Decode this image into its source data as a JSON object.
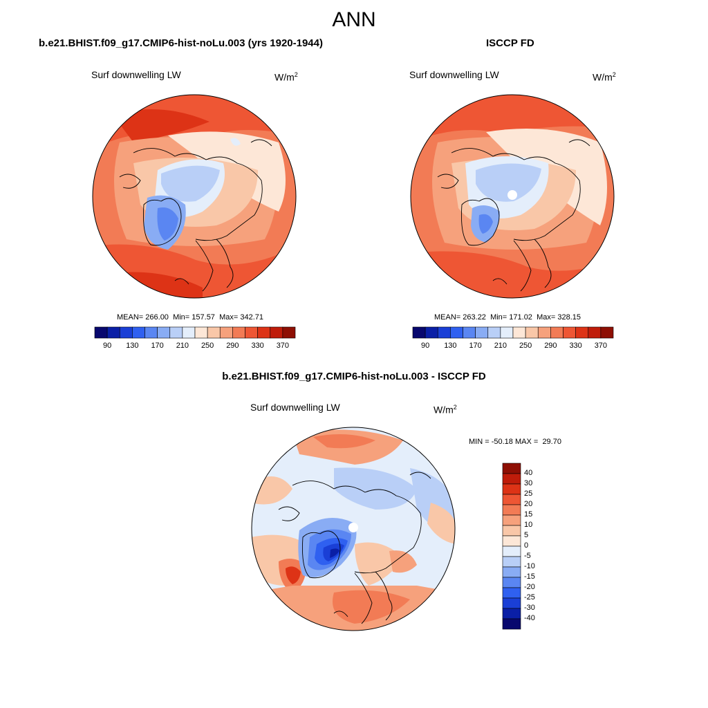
{
  "figure": {
    "season": "ANN"
  },
  "panels": [
    {
      "id": "model",
      "case_title": "b.e21.BHIST.f09_g17.CMIP6-hist-noLu.003 (yrs 1920-1944)",
      "variable": "Surf downwelling LW",
      "units_base": "W/m",
      "units_exp": "2",
      "stats": {
        "mean_label": "MEAN=",
        "mean": "266.00",
        "min_label": "Min=",
        "min": "157.57",
        "max_label": "Max=",
        "max": "342.71"
      }
    },
    {
      "id": "obs",
      "case_title": "ISCCP FD",
      "variable": "Surf downwelling LW",
      "units_base": "W/m",
      "units_exp": "2",
      "stats": {
        "mean_label": "MEAN=",
        "mean": "263.22",
        "min_label": "Min=",
        "min": "171.02",
        "max_label": "Max=",
        "max": "328.15"
      }
    },
    {
      "id": "diff",
      "case_title": "b.e21.BHIST.f09_g17.CMIP6-hist-noLu.003 - ISCCP FD",
      "variable": "Surf downwelling LW",
      "units_base": "W/m",
      "units_exp": "2",
      "stats": {
        "min_label": "MIN =",
        "min": "-50.18",
        "max_label": "MAX =",
        "max": "29.70"
      }
    }
  ],
  "colorbars": {
    "field": {
      "orientation": "horizontal",
      "colors": [
        "#08086e",
        "#0a1fa6",
        "#1a3fd6",
        "#2f60f0",
        "#5a86f2",
        "#89acf4",
        "#b9cff7",
        "#e4eefb",
        "#fde7d7",
        "#f9c7a8",
        "#f6a17c",
        "#f27b55",
        "#ee5634",
        "#dd3316",
        "#bf1c0a",
        "#8e0f04"
      ],
      "tick_labels": [
        "90",
        "130",
        "170",
        "210",
        "250",
        "290",
        "330",
        "370"
      ]
    },
    "diff": {
      "orientation": "vertical",
      "colors_top_to_bottom": [
        "#8e0f04",
        "#bf1c0a",
        "#dd3316",
        "#ee5634",
        "#f27b55",
        "#f6a17c",
        "#f9c7a8",
        "#fde7d7",
        "#e4eefb",
        "#b9cff7",
        "#89acf4",
        "#5a86f2",
        "#2f60f0",
        "#1a3fd6",
        "#0a1fa6",
        "#08086e"
      ],
      "tick_labels_top_to_bottom": [
        "40",
        "30",
        "25",
        "20",
        "15",
        "10",
        "5",
        "0",
        "-5",
        "-10",
        "-15",
        "-20",
        "-25",
        "-30",
        "-40"
      ]
    }
  }
}
